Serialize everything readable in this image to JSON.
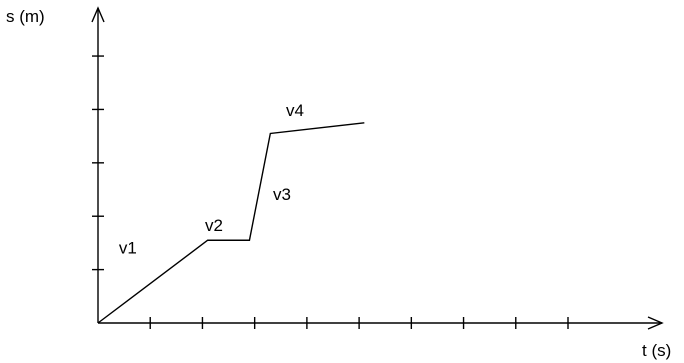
{
  "chart_data": {
    "type": "line",
    "title": "",
    "xlabel": "t (s)",
    "ylabel": "s (m)",
    "xlim": [
      0,
      10.8
    ],
    "ylim": [
      0,
      5.9
    ],
    "x_ticks": [
      1,
      2,
      3,
      4,
      5,
      6,
      7,
      8,
      9
    ],
    "y_ticks": [
      1,
      2,
      3,
      4,
      5
    ],
    "grid": false,
    "series": [
      {
        "x": [
          0,
          2.1,
          2.9,
          3.3,
          5.1
        ],
        "y": [
          0,
          1.55,
          1.55,
          3.55,
          3.75
        ]
      }
    ],
    "annotations": [
      {
        "text": "v1",
        "x": 0.4,
        "y": 1.3
      },
      {
        "text": "v2",
        "x": 2.05,
        "y": 1.72
      },
      {
        "text": "v3",
        "x": 3.35,
        "y": 2.3
      },
      {
        "text": "v4",
        "x": 3.6,
        "y": 3.88
      }
    ]
  }
}
